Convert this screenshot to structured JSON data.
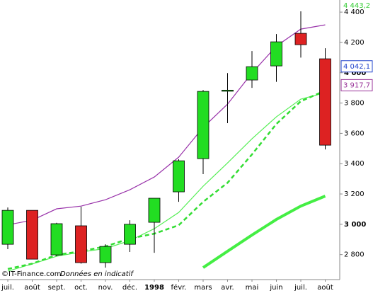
{
  "chart_data": {
    "type": "candlestick",
    "credit": "©IT-Finance.com",
    "note": "Données en indicatif",
    "categories": [
      "juil.",
      "août",
      "sept.",
      "oct.",
      "nov.",
      "déc.",
      "1998",
      "févr.",
      "mars",
      "avr.",
      "mai",
      "juin",
      "juil.",
      "août"
    ],
    "open": [
      2868,
      3092,
      2798,
      2990,
      2747,
      2868,
      3013,
      3214,
      3433,
      3878,
      3952,
      4045,
      4260,
      4092
    ],
    "high": [
      3111,
      3092,
      3010,
      3116,
      2868,
      3027,
      3172,
      3429,
      3886,
      3998,
      4143,
      4255,
      4405,
      4162
    ],
    "low": [
      2836,
      2770,
      2790,
      2740,
      2714,
      2817,
      2812,
      3148,
      3331,
      3667,
      3900,
      3940,
      4100,
      3494
    ],
    "close": [
      3092,
      2770,
      3004,
      2747,
      2854,
      3000,
      3172,
      3419,
      3877,
      3885,
      4040,
      4204,
      4185,
      3522
    ],
    "up_color": "#22dd22",
    "down_color": "#dd2222",
    "series": [
      {
        "color": "#9933aa",
        "values": [
          2996,
          3027,
          3102,
          3120,
          3162,
          3228,
          3312,
          3443,
          3639,
          3793,
          3998,
          4176,
          4288,
          4316
        ],
        "style": "solid",
        "width": 1.2
      },
      {
        "color": "#55ee55",
        "values": [
          2691,
          2738,
          2789,
          2817,
          2840,
          2892,
          2971,
          3078,
          3251,
          3405,
          3564,
          3709,
          3826,
          3868
        ],
        "style": "solid",
        "width": 1.2
      },
      {
        "color": "#33dd33",
        "values": [
          2705,
          2740,
          2798,
          2822,
          2854,
          2906,
          2938,
          2994,
          3148,
          3274,
          3461,
          3662,
          3812,
          3882
        ],
        "style": "dashed",
        "width": 2.5
      },
      {
        "color": "#44ee44",
        "values": [
          null,
          null,
          null,
          null,
          null,
          null,
          null,
          null,
          2714,
          2822,
          2929,
          3032,
          3120,
          3186
        ],
        "style": "solid",
        "width": 4
      }
    ],
    "ylim": [
      2635,
      4480
    ],
    "yticks": [
      {
        "value": 2800,
        "label": "2 800"
      },
      {
        "value": 3000,
        "label": "3 000"
      },
      {
        "value": 3200,
        "label": "3 200"
      },
      {
        "value": 3400,
        "label": "3 400"
      },
      {
        "value": 3600,
        "label": "3 600"
      },
      {
        "value": 3800,
        "label": "3 800"
      },
      {
        "value": 4000,
        "label": "4 000"
      },
      {
        "value": 4200,
        "label": "4 200"
      },
      {
        "value": 4400,
        "label": "4 400"
      }
    ],
    "bold_yticks": [
      3000,
      4000
    ],
    "bold_categories": [
      "1998"
    ],
    "markers": [
      {
        "value": 4443.2,
        "label": "4 443,2",
        "color": "#33cc33",
        "boxed": false
      },
      {
        "value": 4042.1,
        "label": "4 042,1",
        "color": "#2244cc",
        "boxed": true
      },
      {
        "value": 3917.7,
        "label": "3 917,7",
        "color": "#993399",
        "boxed": true
      }
    ]
  }
}
